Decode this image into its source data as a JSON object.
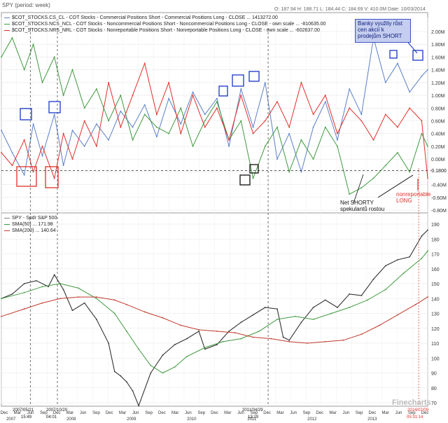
{
  "header": {
    "title": "SPY (period: week)",
    "stats": "O: 187.94  H: 188.71  L: 184.44  C: 184.69  V: 410.0M  Date: 10/03/2014"
  },
  "upper_legend": [
    {
      "label": "$COT_STOCKS.CS_CL - COT Stocks - Commercial Positions Short - Commercial Positions Long - CLOSE ... 1413272.00",
      "color": "#5b7fc8"
    },
    {
      "label": "$COT_STOCKS.NCS_NCL - COT Stocks - Noncommercial Positions Short - Noncommercial Positions Long - CLOSE - own scale ... -810635.00",
      "color": "#3f9a3f"
    },
    {
      "label": "$COT_STOCKS.NRS_NRL - COT Stocks - Nonreportable Positions Short - Nonreportable Positions Long - CLOSE - own scale ... -602637.00",
      "color": "#e0302a"
    }
  ],
  "lower_legend": [
    {
      "label": "SPY - Spdr S&P 500",
      "color": "#888888"
    },
    {
      "label": "SMA(50) ... 171.98",
      "color": "#3f9a3f"
    },
    {
      "label": "SMA(200) ... 140.64",
      "color": "#c0392b"
    }
  ],
  "annotations": {
    "banks_note": "Banky využily růst cen akcií k prodejům SHORT",
    "net_short_note": "Net SHORTY spekulantů rostou",
    "nonreportable_note": "nonreportable LONG",
    "level_label": "-0.1800",
    "watermark": "Finecharts"
  },
  "date_labels": {
    "top": [
      "2007/05/21",
      "2007/10/20",
      "2011/04/29",
      "2014/02/09"
    ],
    "bottom": [
      "15:49",
      "04:01",
      "13:19",
      "05:31:14"
    ]
  },
  "chart_data": [
    {
      "type": "line",
      "title": "COT Stocks positions (own scale)",
      "ylim": [
        -0.8,
        2.0
      ],
      "y_ticks": [
        "2.00M",
        "1.80M",
        "1.60M",
        "1.40M",
        "1.20M",
        "1.00M",
        "0.80M",
        "0.60M",
        "0.40M",
        "0.20M",
        "0.00M",
        "-0.20M",
        "-0.40M",
        "-0.60M",
        "-0.80M"
      ],
      "x_start": 2006.92,
      "x_end": 2014.0,
      "reference_level": -0.18,
      "series": [
        {
          "name": "Commercial (CS-CL)",
          "color": "#5b7fc8",
          "x": [
            2006.92,
            2007.1,
            2007.3,
            2007.45,
            2007.6,
            2007.8,
            2007.95,
            2008.1,
            2008.3,
            2008.5,
            2008.7,
            2008.9,
            2009.1,
            2009.3,
            2009.5,
            2009.7,
            2009.9,
            2010.1,
            2010.3,
            2010.5,
            2010.7,
            2010.9,
            2011.1,
            2011.3,
            2011.5,
            2011.7,
            2011.9,
            2012.1,
            2012.3,
            2012.5,
            2012.7,
            2012.9,
            2013.1,
            2013.3,
            2013.5,
            2013.7,
            2013.9,
            2014.0
          ],
          "values": [
            0.45,
            0.1,
            -0.25,
            0.55,
            0.05,
            0.7,
            -0.1,
            0.45,
            0.2,
            0.55,
            0.3,
            0.75,
            0.5,
            0.85,
            0.35,
            0.95,
            0.55,
            1.05,
            0.7,
            0.95,
            0.2,
            1.1,
            0.5,
            1.2,
            0.0,
            0.4,
            -0.2,
            0.5,
            0.9,
            0.3,
            1.1,
            0.7,
            1.9,
            1.2,
            1.5,
            1.05,
            1.3,
            1.4
          ]
        },
        {
          "name": "Noncommercial (NCS-NCL)",
          "color": "#3f9a3f",
          "x": [
            2006.92,
            2007.1,
            2007.3,
            2007.45,
            2007.6,
            2007.8,
            2007.95,
            2008.1,
            2008.3,
            2008.5,
            2008.7,
            2008.9,
            2009.1,
            2009.3,
            2009.5,
            2009.7,
            2009.9,
            2010.1,
            2010.3,
            2010.5,
            2010.7,
            2010.9,
            2011.1,
            2011.3,
            2011.5,
            2011.7,
            2011.9,
            2012.1,
            2012.3,
            2012.5,
            2012.7,
            2012.9,
            2013.1,
            2013.3,
            2013.5,
            2013.7,
            2013.9,
            2014.0
          ],
          "values": [
            1.6,
            1.9,
            1.4,
            1.8,
            1.2,
            1.6,
            1.0,
            1.4,
            0.8,
            1.1,
            0.6,
            1.0,
            0.3,
            0.7,
            0.5,
            0.4,
            0.8,
            0.2,
            0.6,
            0.9,
            0.3,
            0.6,
            -0.3,
            0.2,
            0.5,
            -0.2,
            0.3,
            0.0,
            0.5,
            0.2,
            -0.55,
            -0.45,
            -0.3,
            -0.1,
            0.1,
            -0.2,
            0.4,
            0.2
          ]
        },
        {
          "name": "Nonreportable (NRS-NRL)",
          "color": "#e0302a",
          "x": [
            2006.92,
            2007.1,
            2007.3,
            2007.45,
            2007.6,
            2007.8,
            2007.95,
            2008.1,
            2008.3,
            2008.5,
            2008.7,
            2008.9,
            2009.1,
            2009.3,
            2009.5,
            2009.7,
            2009.9,
            2010.1,
            2010.3,
            2010.5,
            2010.7,
            2010.9,
            2011.1,
            2011.3,
            2011.5,
            2011.7,
            2011.9,
            2012.1,
            2012.3,
            2012.5,
            2012.7,
            2012.9,
            2013.1,
            2013.3,
            2013.5,
            2013.7,
            2013.9,
            2014.0
          ],
          "values": [
            0.1,
            -0.1,
            0.3,
            -0.2,
            0.2,
            -0.3,
            0.4,
            0.0,
            0.6,
            0.2,
            1.2,
            0.5,
            1.0,
            1.5,
            0.7,
            1.2,
            0.4,
            1.0,
            0.5,
            0.8,
            0.3,
            1.0,
            0.4,
            0.6,
            0.9,
            0.5,
            1.2,
            0.7,
            1.0,
            0.4,
            0.8,
            0.6,
            0.3,
            0.7,
            0.5,
            0.8,
            0.6,
            -0.3
          ]
        }
      ]
    },
    {
      "type": "line",
      "title": "SPY - Spdr S&P 500 weekly with SMA(50) and SMA(200)",
      "ylim": [
        70,
        190
      ],
      "y_ticks": [
        190,
        180,
        170,
        160,
        150,
        140,
        130,
        120,
        110,
        100,
        90,
        80,
        70
      ],
      "x_start": 2006.92,
      "x_end": 2014.0,
      "series": [
        {
          "name": "SPY",
          "color": "#333333",
          "x": [
            2006.92,
            2007.1,
            2007.3,
            2007.5,
            2007.7,
            2007.8,
            2007.95,
            2008.1,
            2008.3,
            2008.5,
            2008.7,
            2008.8,
            2008.9,
            2009.0,
            2009.1,
            2009.2,
            2009.4,
            2009.6,
            2009.8,
            2010.0,
            2010.2,
            2010.3,
            2010.5,
            2010.7,
            2010.9,
            2011.1,
            2011.3,
            2011.5,
            2011.6,
            2011.7,
            2011.9,
            2012.1,
            2012.3,
            2012.5,
            2012.7,
            2012.9,
            2013.1,
            2013.3,
            2013.5,
            2013.7,
            2013.9,
            2014.0
          ],
          "values": [
            140,
            143,
            150,
            152,
            148,
            156,
            146,
            132,
            137,
            126,
            110,
            91,
            88,
            84,
            78,
            68,
            90,
            102,
            109,
            113,
            118,
            106,
            109,
            118,
            124,
            129,
            134,
            133,
            114,
            112,
            124,
            134,
            139,
            134,
            143,
            142,
            153,
            162,
            166,
            168,
            182,
            186
          ]
        },
        {
          "name": "SMA(50)",
          "color": "#3f9a3f",
          "x": [
            2006.92,
            2007.3,
            2007.6,
            2007.9,
            2008.2,
            2008.5,
            2008.8,
            2009.0,
            2009.2,
            2009.4,
            2009.6,
            2009.8,
            2010.0,
            2010.3,
            2010.6,
            2010.9,
            2011.2,
            2011.5,
            2011.8,
            2012.1,
            2012.4,
            2012.7,
            2013.0,
            2013.3,
            2013.6,
            2013.9,
            2014.0
          ],
          "values": [
            140,
            144,
            148,
            150,
            147,
            140,
            130,
            118,
            106,
            95,
            90,
            94,
            101,
            107,
            111,
            113,
            118,
            126,
            128,
            126,
            130,
            134,
            139,
            146,
            157,
            167,
            172
          ]
        },
        {
          "name": "SMA(200)",
          "color": "#c0392b",
          "x": [
            2006.92,
            2007.3,
            2007.6,
            2007.9,
            2008.2,
            2008.5,
            2008.8,
            2009.0,
            2009.3,
            2009.6,
            2009.9,
            2010.2,
            2010.5,
            2010.8,
            2011.1,
            2011.4,
            2011.7,
            2012.0,
            2012.3,
            2012.6,
            2012.9,
            2013.2,
            2013.5,
            2013.8,
            2014.0
          ],
          "values": [
            128,
            133,
            137,
            140,
            141,
            141,
            139,
            136,
            131,
            127,
            122,
            119,
            118,
            117,
            114,
            113,
            111,
            110,
            111,
            112,
            116,
            122,
            129,
            136,
            141
          ]
        }
      ]
    }
  ],
  "x_axis": {
    "month_labels": [
      "Dec",
      "Mar",
      "Jun",
      "Sep",
      "Dec",
      "Mar",
      "Jun",
      "Sep",
      "Dec",
      "Mar",
      "Jun",
      "Sep",
      "Dec",
      "Mar",
      "Jun",
      "Sep",
      "Dec",
      "Mar",
      "Jun",
      "Sep",
      "Dec",
      "Mar",
      "Jun",
      "Sep",
      "Dec",
      "Mar",
      "Jun",
      "Sep",
      "Dec",
      "Mar",
      "Jun",
      "Sep",
      "Dec"
    ],
    "year_labels": [
      "2007",
      "2008",
      "2009",
      "2010",
      "2011",
      "2012",
      "2013"
    ]
  }
}
